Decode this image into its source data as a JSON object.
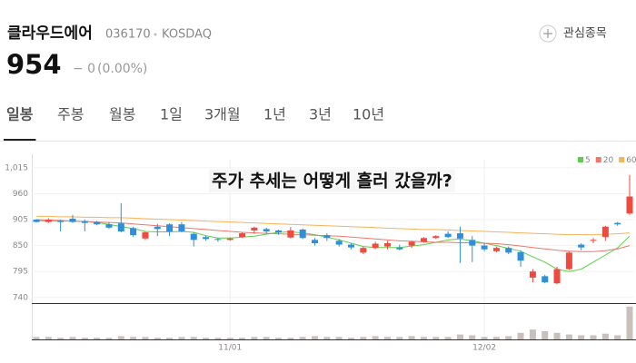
{
  "header": {
    "name": "클라우드에어",
    "code": "036170",
    "market": "KOSDAQ",
    "watch": "관심종목",
    "price": 954,
    "change": "− 0",
    "change_rate": "(0.00%)"
  },
  "tabs": [
    "일봉",
    "주봉",
    "월봉",
    "1일",
    "3개월",
    "1년",
    "3년",
    "10년"
  ],
  "active_tab": 0,
  "chart_data": {
    "type": "candlestick",
    "annotation": "주가 추세는 어떻게 흘러 갔을까?",
    "open": [
      905,
      900,
      903,
      907,
      902,
      900,
      895,
      897,
      887,
      865,
      890,
      895,
      895,
      875,
      868,
      864,
      862,
      868,
      882,
      885,
      882,
      867,
      884,
      862,
      872,
      860,
      852,
      835,
      845,
      848,
      846,
      850,
      858,
      866,
      875,
      876,
      862,
      850,
      838,
      845,
      836,
      782,
      785,
      770,
      800,
      852,
      860,
      868,
      898,
      918
    ],
    "high": [
      906,
      908,
      905,
      915,
      905,
      902,
      900,
      940,
      890,
      880,
      896,
      897,
      900,
      878,
      871,
      866,
      867,
      878,
      890,
      888,
      884,
      889,
      886,
      866,
      876,
      864,
      855,
      848,
      858,
      860,
      852,
      860,
      868,
      872,
      880,
      890,
      870,
      856,
      848,
      848,
      840,
      800,
      788,
      805,
      838,
      855,
      866,
      892,
      900,
      1000
    ],
    "low": [
      899,
      898,
      880,
      898,
      880,
      893,
      885,
      878,
      868,
      862,
      870,
      870,
      878,
      848,
      860,
      858,
      860,
      866,
      875,
      876,
      873,
      865,
      864,
      850,
      860,
      848,
      842,
      832,
      842,
      842,
      840,
      845,
      856,
      864,
      866,
      813,
      815,
      838,
      836,
      832,
      805,
      772,
      770,
      768,
      798,
      840,
      855,
      860,
      892,
      915
    ],
    "close": [
      900,
      905,
      900,
      900,
      898,
      895,
      888,
      880,
      872,
      878,
      885,
      880,
      880,
      862,
      864,
      862,
      865,
      876,
      888,
      880,
      878,
      882,
      866,
      855,
      866,
      852,
      846,
      845,
      854,
      855,
      842,
      858,
      866,
      870,
      868,
      865,
      850,
      842,
      845,
      835,
      818,
      795,
      772,
      800,
      835,
      846,
      862,
      890,
      895,
      954
    ],
    "volume": [
      3,
      3,
      2,
      3,
      2,
      2,
      2,
      4,
      3,
      3,
      2,
      2,
      3,
      3,
      2,
      2,
      2,
      2,
      3,
      3,
      2,
      2,
      3,
      4,
      3,
      3,
      2,
      3,
      4,
      3,
      3,
      4,
      3,
      3,
      3,
      6,
      5,
      3,
      3,
      4,
      8,
      12,
      10,
      8,
      6,
      5,
      5,
      7,
      5,
      40
    ],
    "up_color": "#f0493e",
    "down_color": "#2e8fd8",
    "volume_color": "#c9bfbb",
    "ma": [
      {
        "name": "5",
        "color": "#5ccf4a",
        "values": [
          903,
          902,
          902,
          902,
          901,
          899,
          895,
          890,
          886,
          880,
          879,
          879,
          880,
          878,
          871,
          866,
          866,
          868,
          870,
          874,
          878,
          879,
          877,
          873,
          868,
          862,
          855,
          848,
          846,
          846,
          846,
          849,
          852,
          857,
          862,
          864,
          860,
          855,
          850,
          844,
          838,
          826,
          815,
          800,
          795,
          800,
          815,
          830,
          845,
          870
        ]
      },
      {
        "name": "20",
        "color": "#f0766a",
        "values": [
          905,
          904,
          903,
          902,
          901,
          900,
          899,
          898,
          896,
          894,
          892,
          890,
          888,
          886,
          884,
          882,
          880,
          878,
          877,
          876,
          875,
          874,
          873,
          872,
          871,
          870,
          868,
          866,
          864,
          862,
          860,
          859,
          858,
          857,
          857,
          856,
          856,
          855,
          854,
          852,
          849,
          846,
          843,
          840,
          838,
          837,
          837,
          839,
          843,
          850
        ]
      },
      {
        "name": "60",
        "color": "#f5b35a",
        "values": [
          912,
          912,
          911,
          911,
          910,
          910,
          909,
          909,
          908,
          907,
          906,
          905,
          904,
          903,
          902,
          901,
          900,
          899,
          898,
          897,
          896,
          895,
          894,
          893,
          892,
          891,
          890,
          889,
          888,
          887,
          886,
          885,
          884,
          884,
          883,
          882,
          881,
          880,
          879,
          878,
          877,
          876,
          875,
          874,
          873,
          873,
          873,
          874,
          875,
          877
        ]
      }
    ],
    "ylim": [
      728,
      1032
    ],
    "yticks": [
      {
        "value": 1015,
        "label": "1,015"
      },
      960,
      905,
      850,
      795,
      740
    ],
    "volume_ylim": [
      0,
      42
    ],
    "xticks": [
      {
        "value": 16,
        "label": "11/01"
      },
      {
        "value": 37,
        "label": "12/02"
      }
    ],
    "grid": true
  }
}
